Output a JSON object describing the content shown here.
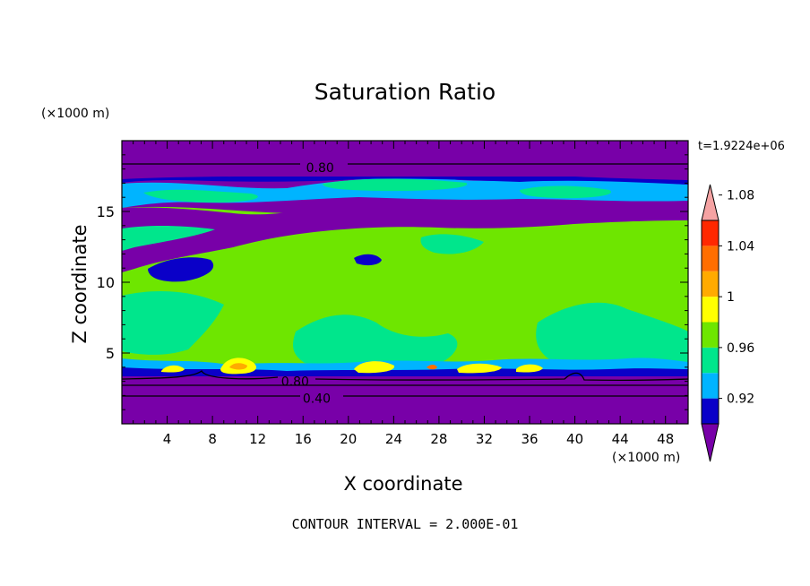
{
  "chart_data": {
    "type": "heatmap",
    "title": "Saturation Ratio",
    "xlabel": "X coordinate",
    "ylabel": "Z coordinate",
    "x_unit": "(×1000 m)",
    "y_unit": "(×1000 m)",
    "time_label": "t=1.9224e+06",
    "footer": "CONTOUR INTERVAL = 2.000E-01",
    "xlim": [
      0,
      50
    ],
    "ylim": [
      0,
      20
    ],
    "x_ticks": [
      "4",
      "8",
      "12",
      "16",
      "20",
      "24",
      "28",
      "32",
      "36",
      "40",
      "44",
      "48"
    ],
    "x_tick_values": [
      4,
      8,
      12,
      16,
      20,
      24,
      28,
      32,
      36,
      40,
      44,
      48
    ],
    "y_ticks": [
      "5",
      "10",
      "15"
    ],
    "y_tick_values": [
      5,
      10,
      15
    ],
    "contour_labels": [
      {
        "text": "0.80",
        "x": 17.5,
        "z": 18.1
      },
      {
        "text": "0.80",
        "x": 15.3,
        "z": 3.0
      },
      {
        "text": "0.40",
        "x": 17.2,
        "z": 1.8
      }
    ],
    "colorbar": {
      "levels": [
        "0.92",
        "0.96",
        "1",
        "1.04",
        "1.08"
      ],
      "colors": [
        "#7800a8",
        "#0a00c8",
        "#00b4ff",
        "#00e68c",
        "#6ee600",
        "#ffff00",
        "#ffaa00",
        "#ff6e00",
        "#ff2800",
        "#f5a3a3"
      ]
    }
  }
}
